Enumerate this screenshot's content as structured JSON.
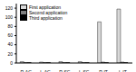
{
  "chart_data": {
    "type": "bar",
    "categories": [
      "R-AC",
      "L-AC",
      "R-SC",
      "L-SC",
      "R-IT",
      "L-IT"
    ],
    "series": [
      {
        "name": "First application",
        "color": "#d9d9d9",
        "values": [
          3,
          2,
          3,
          3,
          90,
          118
        ]
      },
      {
        "name": "Second application",
        "color": "#808080",
        "values": [
          1,
          1,
          1,
          1,
          2,
          2
        ]
      },
      {
        "name": "Third application",
        "color": "#000000",
        "values": [
          1,
          1,
          1,
          1,
          1,
          1
        ]
      }
    ],
    "ylim": [
      0,
      130
    ],
    "yticks": [
      0,
      20,
      40,
      60,
      80,
      100,
      120
    ],
    "grid": false,
    "legend": "upper left"
  }
}
